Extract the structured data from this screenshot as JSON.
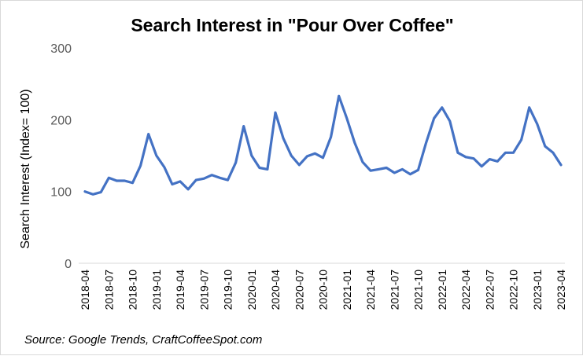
{
  "chart_data": {
    "type": "line",
    "title": "Search Interest in \"Pour Over Coffee\"",
    "ylabel": "Search Interest (Index= 100)",
    "xlabel": "",
    "source": "Source: Google Trends, CraftCoffeeSpot.com",
    "ylim": [
      0,
      300
    ],
    "yticks": [
      0,
      100,
      200,
      300
    ],
    "grid": false,
    "legend": "none",
    "line_color": "#4472c4",
    "x_tick_labels": [
      "2018-04",
      "2018-07",
      "2018-10",
      "2019-01",
      "2019-04",
      "2019-07",
      "2019-10",
      "2020-01",
      "2020-04",
      "2020-07",
      "2020-10",
      "2021-01",
      "2021-04",
      "2021-07",
      "2021-10",
      "2022-01",
      "2022-04",
      "2022-07",
      "2022-10",
      "2023-01",
      "2023-04"
    ],
    "x": [
      "2018-04",
      "2018-05",
      "2018-06",
      "2018-07",
      "2018-08",
      "2018-09",
      "2018-10",
      "2018-11",
      "2018-12",
      "2019-01",
      "2019-02",
      "2019-03",
      "2019-04",
      "2019-05",
      "2019-06",
      "2019-07",
      "2019-08",
      "2019-09",
      "2019-10",
      "2019-11",
      "2019-12",
      "2020-01",
      "2020-02",
      "2020-03",
      "2020-04",
      "2020-05",
      "2020-06",
      "2020-07",
      "2020-08",
      "2020-09",
      "2020-10",
      "2020-11",
      "2020-12",
      "2021-01",
      "2021-02",
      "2021-03",
      "2021-04",
      "2021-05",
      "2021-06",
      "2021-07",
      "2021-08",
      "2021-09",
      "2021-10",
      "2021-11",
      "2021-12",
      "2022-01",
      "2022-02",
      "2022-03",
      "2022-04",
      "2022-05",
      "2022-06",
      "2022-07",
      "2022-08",
      "2022-09",
      "2022-10",
      "2022-11",
      "2022-12",
      "2023-01",
      "2023-02",
      "2023-03",
      "2023-04"
    ],
    "values": [
      100,
      96,
      99,
      119,
      115,
      115,
      112,
      136,
      180,
      150,
      134,
      110,
      114,
      103,
      116,
      118,
      123,
      119,
      116,
      140,
      191,
      150,
      133,
      131,
      210,
      174,
      150,
      137,
      149,
      153,
      147,
      176,
      233,
      202,
      168,
      141,
      129,
      131,
      133,
      126,
      131,
      124,
      130,
      168,
      202,
      217,
      198,
      154,
      148,
      146,
      135,
      145,
      142,
      154,
      154,
      172,
      217,
      194,
      163,
      154,
      137
    ]
  }
}
